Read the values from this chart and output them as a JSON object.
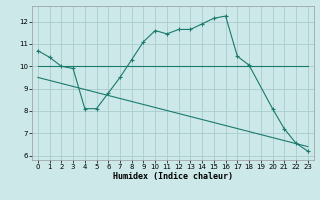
{
  "xlabel": "Humidex (Indice chaleur)",
  "background_color": "#cce8e8",
  "grid_color": "#aacccc",
  "line_color": "#1a7a6e",
  "xlim": [
    -0.5,
    23.5
  ],
  "ylim": [
    5.8,
    12.7
  ],
  "yticks": [
    6,
    7,
    8,
    9,
    10,
    11,
    12
  ],
  "xticks": [
    0,
    1,
    2,
    3,
    4,
    5,
    6,
    7,
    8,
    9,
    10,
    11,
    12,
    13,
    14,
    15,
    16,
    17,
    18,
    19,
    20,
    21,
    22,
    23
  ],
  "line1_x": [
    0,
    1,
    2,
    3,
    4,
    5,
    6,
    7,
    8,
    9,
    10,
    11,
    12,
    13,
    14,
    15,
    16,
    17,
    18,
    20,
    21,
    22,
    23
  ],
  "line1_y": [
    10.7,
    10.4,
    10.0,
    9.9,
    8.1,
    8.1,
    8.8,
    9.5,
    10.3,
    11.1,
    11.6,
    11.45,
    11.65,
    11.65,
    11.9,
    12.15,
    12.25,
    10.45,
    10.05,
    8.1,
    7.2,
    6.55,
    6.2
  ],
  "line2_x": [
    0,
    23
  ],
  "line2_y": [
    10.0,
    10.0
  ],
  "line3_x": [
    0,
    23
  ],
  "line3_y": [
    9.5,
    6.4
  ]
}
